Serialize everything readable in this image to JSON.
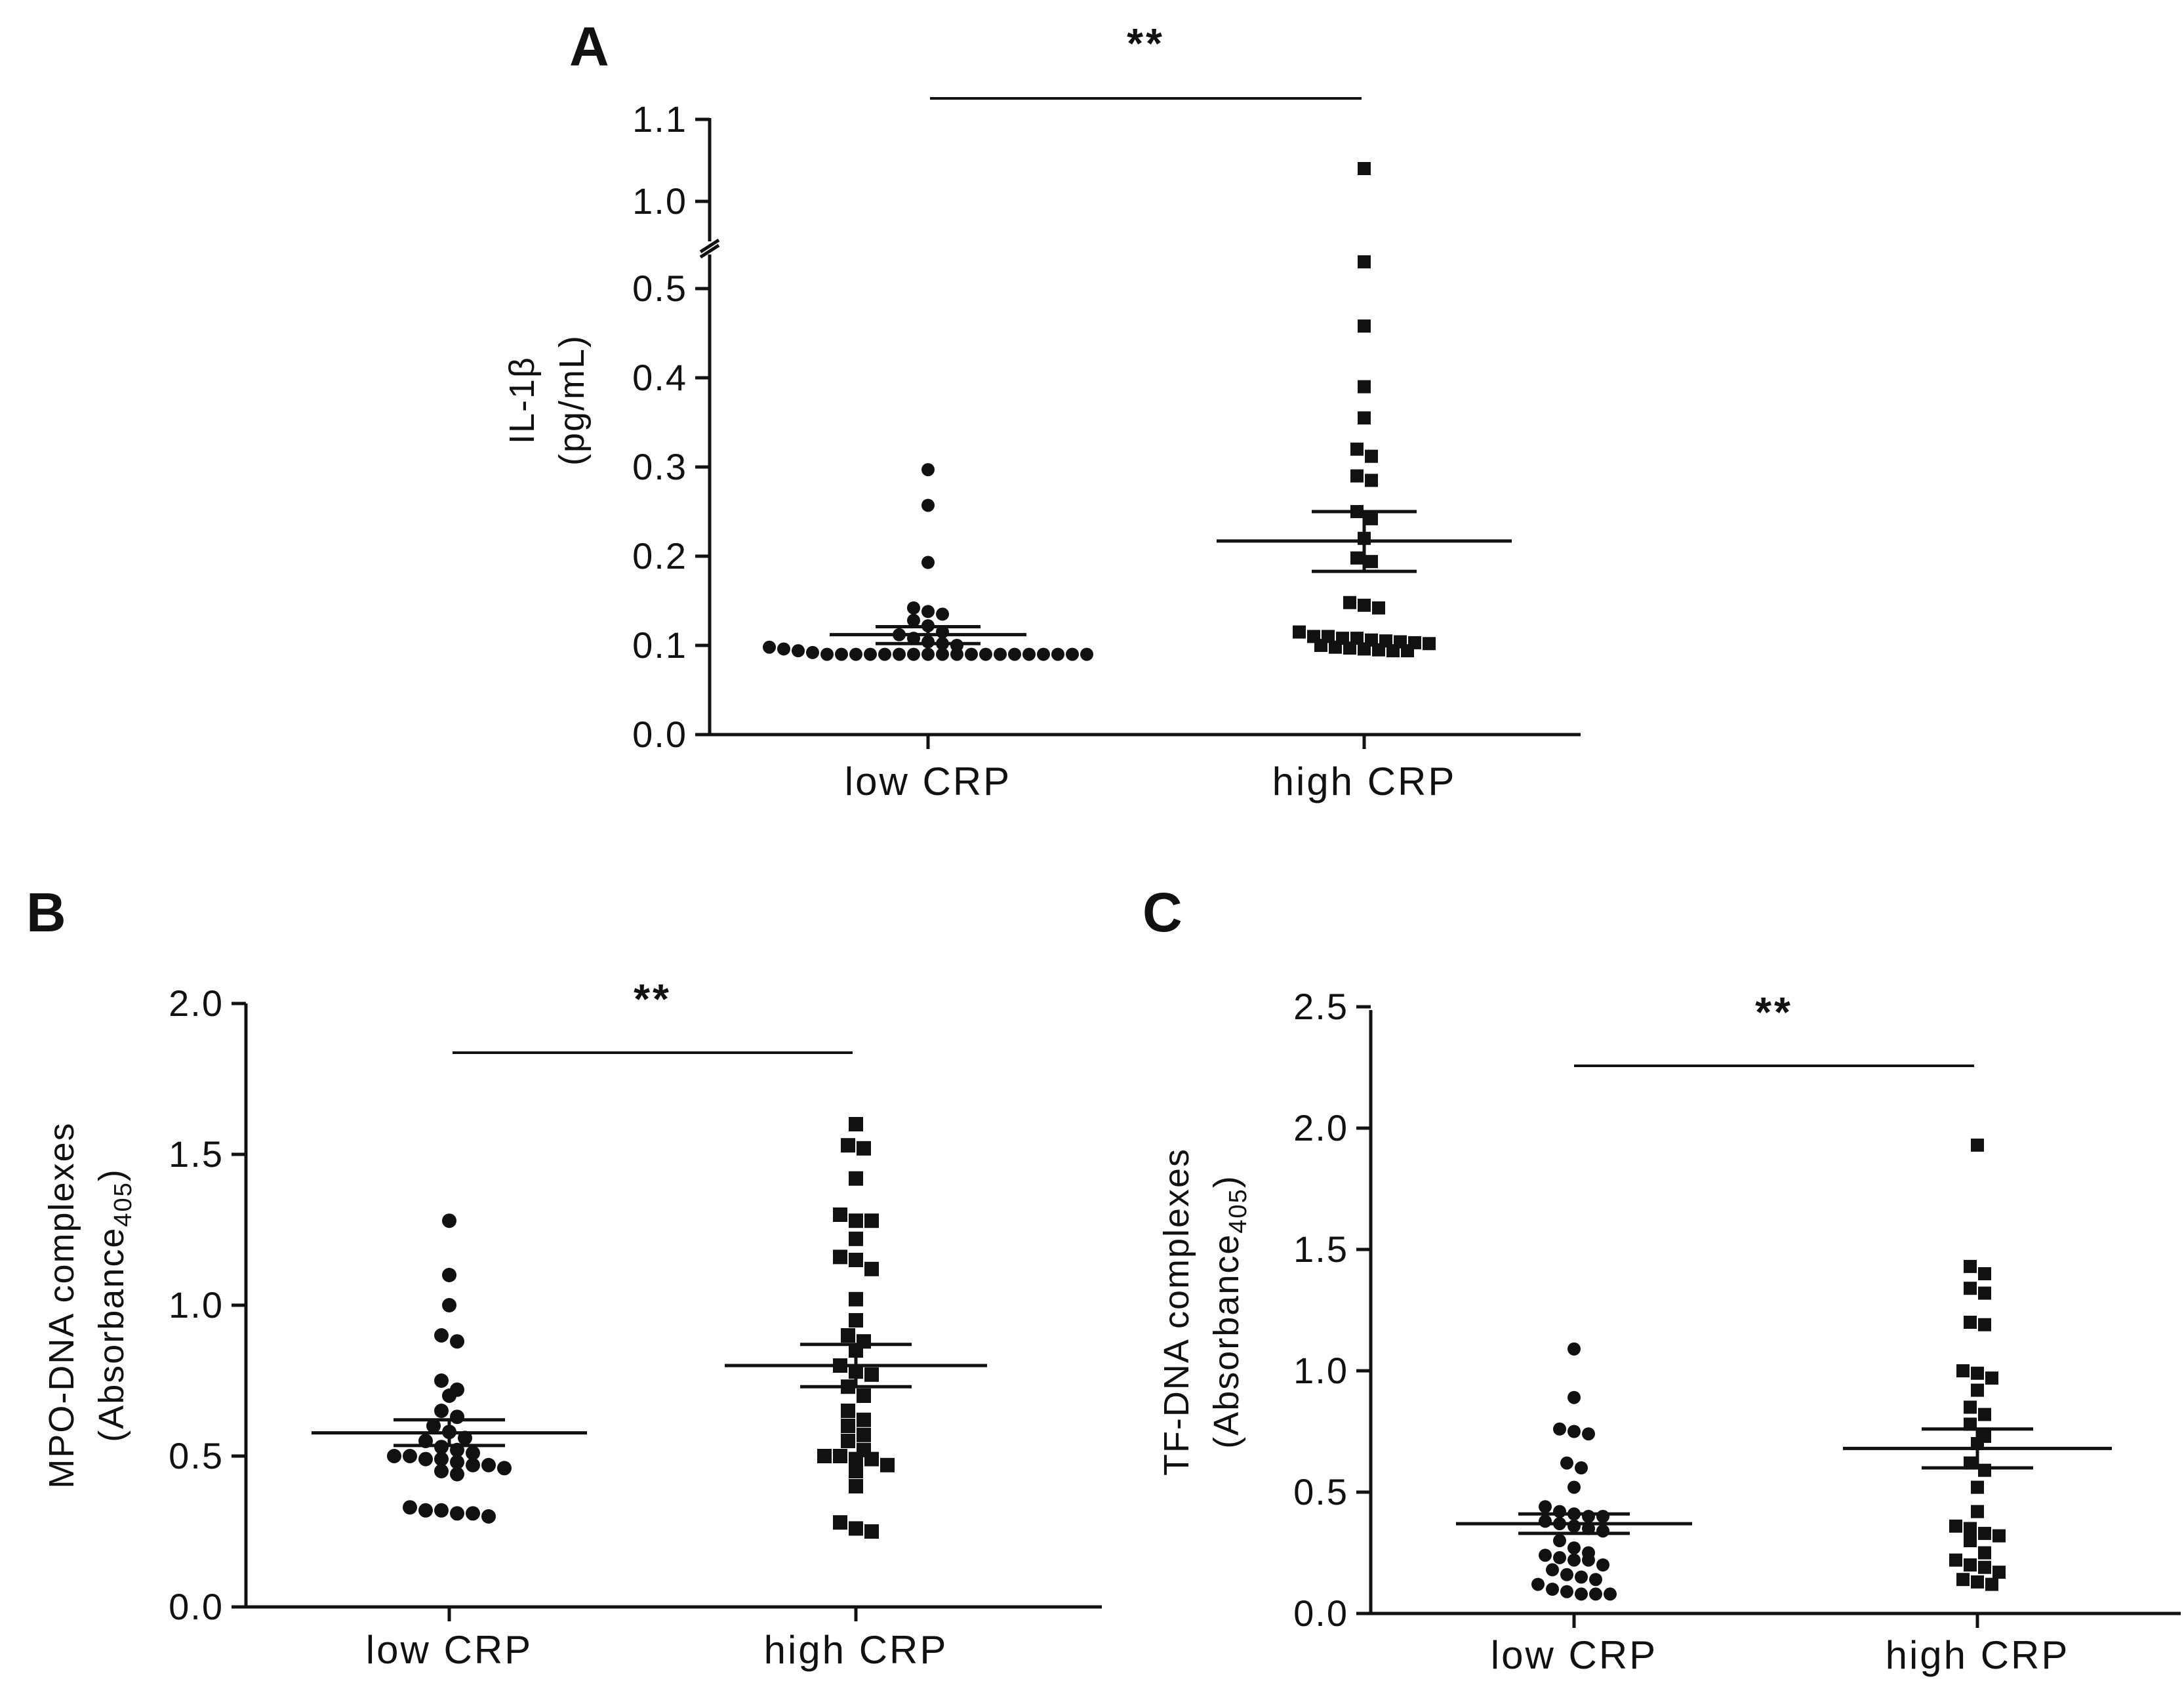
{
  "chart_data": [
    {
      "panel": "A",
      "type": "scatter",
      "ylabel_line1": "IL-1β",
      "ylabel_line2": "(pg/mL)",
      "ylim": [
        0.0,
        1.1
      ],
      "axis_break": [
        0.55,
        0.95
      ],
      "yticks": [
        0.0,
        0.1,
        0.2,
        0.3,
        0.4,
        0.5,
        1.0,
        1.1
      ],
      "ytick_labels": [
        "0.0",
        "0.1",
        "0.2",
        "0.3",
        "0.4",
        "0.5",
        "1.0",
        "1.1"
      ],
      "categories": [
        "low CRP",
        "high CRP"
      ],
      "significance": "**",
      "series": [
        {
          "name": "low CRP",
          "marker": "circle",
          "mean": 0.112,
          "sem_low": 0.102,
          "sem_high": 0.121,
          "values": [
            0.297,
            0.257,
            0.193,
            0.142,
            0.138,
            0.135,
            0.128,
            0.122,
            0.115,
            0.112,
            0.108,
            0.104,
            0.102,
            0.1,
            0.098,
            0.096,
            0.094,
            0.092,
            0.09,
            0.09,
            0.09,
            0.09,
            0.09,
            0.09,
            0.09,
            0.09,
            0.09,
            0.09,
            0.09,
            0.09,
            0.09,
            0.09,
            0.09,
            0.09,
            0.09,
            0.09,
            0.09
          ]
        },
        {
          "name": "high CRP",
          "marker": "square",
          "mean": 0.217,
          "sem_low": 0.183,
          "sem_high": 0.25,
          "values": [
            1.04,
            0.53,
            0.458,
            0.39,
            0.355,
            0.32,
            0.312,
            0.29,
            0.285,
            0.25,
            0.242,
            0.22,
            0.198,
            0.194,
            0.148,
            0.145,
            0.142,
            0.115,
            0.11,
            0.11,
            0.108,
            0.108,
            0.106,
            0.105,
            0.104,
            0.103,
            0.102,
            0.1,
            0.098,
            0.097,
            0.096,
            0.095,
            0.094,
            0.094
          ]
        }
      ]
    },
    {
      "panel": "B",
      "type": "scatter",
      "ylabel_line1": "MPO-DNA complexes",
      "ylabel_line2_main": "(Absorbance",
      "ylabel_line2_sub": "405",
      "ylabel_line2_end": ")",
      "ylim": [
        0.0,
        2.0
      ],
      "yticks": [
        0.0,
        0.5,
        1.0,
        1.5,
        2.0
      ],
      "ytick_labels": [
        "0.0",
        "0.5",
        "1.0",
        "1.5",
        "2.0"
      ],
      "categories": [
        "low CRP",
        "high CRP"
      ],
      "significance": "**",
      "series": [
        {
          "name": "low CRP",
          "marker": "circle",
          "mean": 0.577,
          "sem_low": 0.535,
          "sem_high": 0.62,
          "values": [
            1.28,
            1.1,
            1.0,
            0.9,
            0.88,
            0.75,
            0.72,
            0.7,
            0.65,
            0.63,
            0.6,
            0.58,
            0.56,
            0.55,
            0.53,
            0.52,
            0.51,
            0.5,
            0.5,
            0.49,
            0.49,
            0.48,
            0.47,
            0.47,
            0.46,
            0.45,
            0.44,
            0.33,
            0.32,
            0.32,
            0.31,
            0.31,
            0.3
          ]
        },
        {
          "name": "high CRP",
          "marker": "square",
          "mean": 0.8,
          "sem_low": 0.73,
          "sem_high": 0.87,
          "values": [
            1.6,
            1.53,
            1.52,
            1.42,
            1.3,
            1.28,
            1.28,
            1.22,
            1.16,
            1.15,
            1.12,
            1.02,
            0.95,
            0.9,
            0.88,
            0.85,
            0.8,
            0.78,
            0.77,
            0.73,
            0.7,
            0.65,
            0.62,
            0.6,
            0.57,
            0.55,
            0.52,
            0.5,
            0.5,
            0.49,
            0.49,
            0.47,
            0.45,
            0.4,
            0.28,
            0.26,
            0.25
          ]
        }
      ]
    },
    {
      "panel": "C",
      "type": "scatter",
      "ylabel_line1": "TF-DNA complexes",
      "ylabel_line2_main": "(Absorbance",
      "ylabel_line2_sub": "405",
      "ylabel_line2_end": ")",
      "ylim": [
        0.0,
        2.5
      ],
      "yticks": [
        0.0,
        0.5,
        1.0,
        1.5,
        2.0,
        2.5
      ],
      "ytick_labels": [
        "0.0",
        "0.5",
        "1.0",
        "1.5",
        "2.0",
        "2.5"
      ],
      "categories": [
        "low CRP",
        "high CRP"
      ],
      "significance": "**",
      "series": [
        {
          "name": "low CRP",
          "marker": "circle",
          "mean": 0.37,
          "sem_low": 0.33,
          "sem_high": 0.41,
          "values": [
            1.09,
            0.89,
            0.76,
            0.75,
            0.74,
            0.62,
            0.6,
            0.52,
            0.44,
            0.42,
            0.41,
            0.4,
            0.4,
            0.38,
            0.37,
            0.36,
            0.35,
            0.34,
            0.3,
            0.27,
            0.25,
            0.24,
            0.23,
            0.22,
            0.22,
            0.2,
            0.18,
            0.16,
            0.15,
            0.14,
            0.12,
            0.1,
            0.09,
            0.08,
            0.08,
            0.08
          ]
        },
        {
          "name": "high CRP",
          "marker": "square",
          "mean": 0.68,
          "sem_low": 0.6,
          "sem_high": 0.76,
          "values": [
            1.93,
            1.43,
            1.4,
            1.34,
            1.32,
            1.2,
            1.19,
            1.0,
            0.99,
            0.97,
            0.92,
            0.85,
            0.82,
            0.78,
            0.73,
            0.7,
            0.62,
            0.59,
            0.52,
            0.42,
            0.36,
            0.35,
            0.33,
            0.32,
            0.3,
            0.25,
            0.22,
            0.2,
            0.19,
            0.17,
            0.14,
            0.13,
            0.12
          ]
        }
      ]
    }
  ]
}
